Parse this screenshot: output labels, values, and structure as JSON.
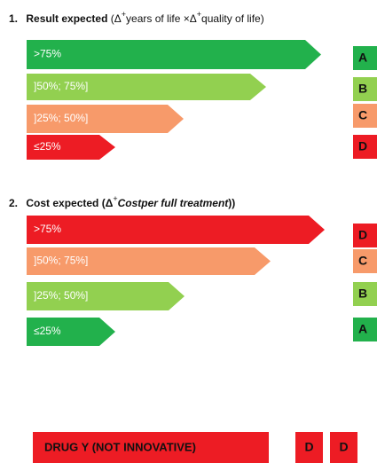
{
  "sections": [
    {
      "number": "1.",
      "title_bold": "Result expected",
      "title_parts": [
        " (Δ",
        "+",
        "years of life ×Δ",
        "+",
        "quality of life)"
      ],
      "rows": [
        {
          "label": ">75%",
          "color": "#22b14c",
          "grade": "A"
        },
        {
          "label": "]50%; 75%]",
          "color": "#92d050",
          "grade": "B"
        },
        {
          "label": "]25%; 50%]",
          "color": "#f79a6a",
          "grade": "C"
        },
        {
          "label": "≤25%",
          "color": "#ed1c24",
          "grade": "D"
        }
      ]
    },
    {
      "number": "2.",
      "title_bold": "Cost expected (Δ",
      "title_parts": [
        "+",
        "Costper full treatment",
        "))"
      ],
      "rows": [
        {
          "label": ">75%",
          "color": "#ed1c24",
          "grade": "D"
        },
        {
          "label": "]50%; 75%]",
          "color": "#f79a6a",
          "grade": "C"
        },
        {
          "label": "]25%; 50%]",
          "color": "#92d050",
          "grade": "B"
        },
        {
          "label": "≤25%",
          "color": "#22b14c",
          "grade": "A"
        }
      ]
    }
  ],
  "drug": {
    "name": "DRUG Y (NOT INNOVATIVE)",
    "grades": [
      "D",
      "D"
    ],
    "color": "#ed1c24"
  }
}
